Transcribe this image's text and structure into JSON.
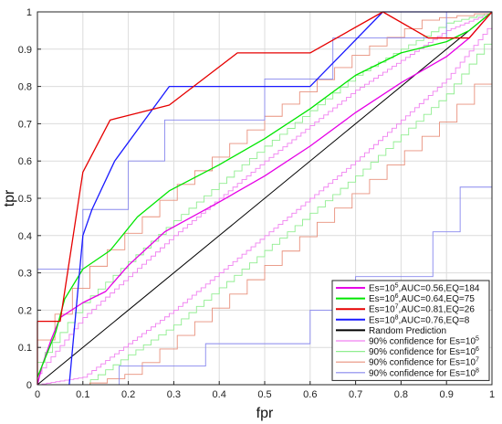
{
  "chart_data": {
    "type": "line",
    "title": "",
    "xlabel": "fpr",
    "ylabel": "tpr",
    "xlim": [
      0,
      1
    ],
    "ylim": [
      0,
      1
    ],
    "grid": true,
    "legend_position": "bottom-right",
    "x_ticks": [
      "0",
      "0.1",
      "0.2",
      "0.3",
      "0.4",
      "0.5",
      "0.6",
      "0.7",
      "0.8",
      "0.9",
      "1"
    ],
    "y_ticks": [
      "0",
      "0.1",
      "0.2",
      "0.3",
      "0.4",
      "0.5",
      "0.6",
      "0.7",
      "0.8",
      "0.9",
      "1"
    ],
    "series": [
      {
        "name": "Es=10^5,AUC=0.56,EQ=184",
        "label": {
          "base": "Es=10",
          "exp": "5",
          "rest": ",AUC=0.56,EQ=184"
        },
        "color": "#e600e6",
        "width": 1.3,
        "style": "solid",
        "points": [
          [
            0,
            0
          ],
          [
            0.01,
            0.05
          ],
          [
            0.03,
            0.12
          ],
          [
            0.05,
            0.18
          ],
          [
            0.1,
            0.22
          ],
          [
            0.15,
            0.25
          ],
          [
            0.2,
            0.32
          ],
          [
            0.28,
            0.41
          ],
          [
            0.4,
            0.49
          ],
          [
            0.5,
            0.56
          ],
          [
            0.6,
            0.64
          ],
          [
            0.7,
            0.73
          ],
          [
            0.8,
            0.81
          ],
          [
            0.9,
            0.88
          ],
          [
            0.95,
            0.93
          ],
          [
            1,
            1
          ]
        ]
      },
      {
        "name": "Es=10^6,AUC=0.64,EQ=75",
        "label": {
          "base": "Es=10",
          "exp": "6",
          "rest": ",AUC=0.64,EQ=75"
        },
        "color": "#00e600",
        "width": 1.3,
        "style": "solid",
        "points": [
          [
            0,
            0.02
          ],
          [
            0.02,
            0.08
          ],
          [
            0.04,
            0.14
          ],
          [
            0.06,
            0.23
          ],
          [
            0.1,
            0.31
          ],
          [
            0.16,
            0.36
          ],
          [
            0.22,
            0.45
          ],
          [
            0.29,
            0.52
          ],
          [
            0.4,
            0.59
          ],
          [
            0.5,
            0.66
          ],
          [
            0.6,
            0.74
          ],
          [
            0.7,
            0.83
          ],
          [
            0.8,
            0.89
          ],
          [
            0.9,
            0.92
          ],
          [
            0.95,
            0.95
          ],
          [
            1,
            1
          ]
        ]
      },
      {
        "name": "Es=10^7,AUC=0.81,EQ=26",
        "label": {
          "base": "Es=10",
          "exp": "7",
          "rest": ",AUC=0.81,EQ=26"
        },
        "color": "#e60000",
        "width": 1.3,
        "style": "solid",
        "points": [
          [
            0,
            0
          ],
          [
            0,
            0.17
          ],
          [
            0.05,
            0.17
          ],
          [
            0.07,
            0.33
          ],
          [
            0.1,
            0.57
          ],
          [
            0.16,
            0.71
          ],
          [
            0.29,
            0.75
          ],
          [
            0.44,
            0.89
          ],
          [
            0.6,
            0.89
          ],
          [
            0.76,
            1
          ],
          [
            0.86,
            0.93
          ],
          [
            0.95,
            0.93
          ],
          [
            1,
            1
          ]
        ]
      },
      {
        "name": "Es=10^8,AUC=0.76,EQ=8",
        "label": {
          "base": "Es=10",
          "exp": "8",
          "rest": ",AUC=0.76,EQ=8"
        },
        "color": "#1a1aff",
        "width": 1.3,
        "style": "solid",
        "points": [
          [
            0.07,
            0
          ],
          [
            0.1,
            0.4
          ],
          [
            0.12,
            0.47
          ],
          [
            0.17,
            0.6
          ],
          [
            0.29,
            0.8
          ],
          [
            0.6,
            0.8
          ],
          [
            0.76,
            1
          ],
          [
            1,
            1
          ]
        ]
      },
      {
        "name": "Random Prediction",
        "label": {
          "base": "Random Prediction",
          "exp": "",
          "rest": ""
        },
        "color": "#000000",
        "width": 1,
        "style": "solid",
        "points": [
          [
            0,
            0
          ],
          [
            1,
            1
          ]
        ]
      },
      {
        "name": "90% confidence for Es=10^5",
        "label": {
          "base": "90% confidence for Es=10",
          "exp": "5",
          "rest": ""
        },
        "color": "#f080f0",
        "width": 0.9,
        "style": "band",
        "steps": 100,
        "upper": [
          [
            0,
            0.03
          ],
          [
            0.1,
            0.18
          ],
          [
            0.3,
            0.4
          ],
          [
            0.5,
            0.6
          ],
          [
            0.7,
            0.79
          ],
          [
            0.9,
            0.95
          ],
          [
            1,
            1
          ]
        ],
        "lower": [
          [
            0,
            0
          ],
          [
            0.1,
            0.02
          ],
          [
            0.3,
            0.2
          ],
          [
            0.5,
            0.4
          ],
          [
            0.7,
            0.6
          ],
          [
            0.9,
            0.82
          ],
          [
            1,
            0.97
          ]
        ]
      },
      {
        "name": "90% confidence for Es=10^6",
        "label": {
          "base": "90% confidence for Es=10",
          "exp": "6",
          "rest": ""
        },
        "color": "#90ee90",
        "width": 0.9,
        "style": "band",
        "steps": 60,
        "upper": [
          [
            0,
            0.06
          ],
          [
            0.1,
            0.22
          ],
          [
            0.3,
            0.44
          ],
          [
            0.5,
            0.64
          ],
          [
            0.7,
            0.83
          ],
          [
            0.9,
            0.97
          ],
          [
            1,
            1
          ]
        ],
        "lower": [
          [
            0,
            0
          ],
          [
            0.1,
            0
          ],
          [
            0.3,
            0.16
          ],
          [
            0.5,
            0.36
          ],
          [
            0.7,
            0.56
          ],
          [
            0.9,
            0.78
          ],
          [
            1,
            0.94
          ]
        ]
      },
      {
        "name": "90% confidence for Es=10^7",
        "label": {
          "base": "90% confidence for Es=10",
          "exp": "7",
          "rest": ""
        },
        "color": "#e8907c",
        "width": 0.9,
        "style": "band",
        "steps": 26,
        "upper": [
          [
            0,
            0.12
          ],
          [
            0.1,
            0.3
          ],
          [
            0.3,
            0.53
          ],
          [
            0.5,
            0.72
          ],
          [
            0.7,
            0.89
          ],
          [
            0.85,
            0.98
          ],
          [
            1,
            1
          ]
        ],
        "lower": [
          [
            0,
            0
          ],
          [
            0.1,
            0
          ],
          [
            0.2,
            0.03
          ],
          [
            0.4,
            0.22
          ],
          [
            0.6,
            0.42
          ],
          [
            0.8,
            0.62
          ],
          [
            0.9,
            0.72
          ],
          [
            1,
            0.86
          ]
        ]
      },
      {
        "name": "90% confidence for Es=10^8",
        "label": {
          "base": "90% confidence for Es=10",
          "exp": "8",
          "rest": ""
        },
        "color": "#8888ee",
        "width": 0.9,
        "style": "polyline",
        "upper": [
          [
            0,
            0.31
          ],
          [
            0.1,
            0.31
          ],
          [
            0.1,
            0.47
          ],
          [
            0.2,
            0.47
          ],
          [
            0.2,
            0.6
          ],
          [
            0.28,
            0.6
          ],
          [
            0.28,
            0.71
          ],
          [
            0.5,
            0.71
          ],
          [
            0.5,
            0.82
          ],
          [
            0.65,
            0.82
          ],
          [
            0.65,
            0.93
          ],
          [
            0.9,
            0.93
          ],
          [
            0.9,
            1
          ],
          [
            1,
            1
          ]
        ],
        "lower": [
          [
            0,
            0
          ],
          [
            0.18,
            0
          ],
          [
            0.18,
            0.05
          ],
          [
            0.37,
            0.05
          ],
          [
            0.37,
            0.11
          ],
          [
            0.6,
            0.11
          ],
          [
            0.6,
            0.2
          ],
          [
            0.7,
            0.2
          ],
          [
            0.7,
            0.29
          ],
          [
            0.87,
            0.29
          ],
          [
            0.87,
            0.41
          ],
          [
            0.93,
            0.41
          ],
          [
            0.93,
            0.53
          ],
          [
            1,
            0.53
          ],
          [
            1,
            0.75
          ]
        ]
      }
    ]
  }
}
